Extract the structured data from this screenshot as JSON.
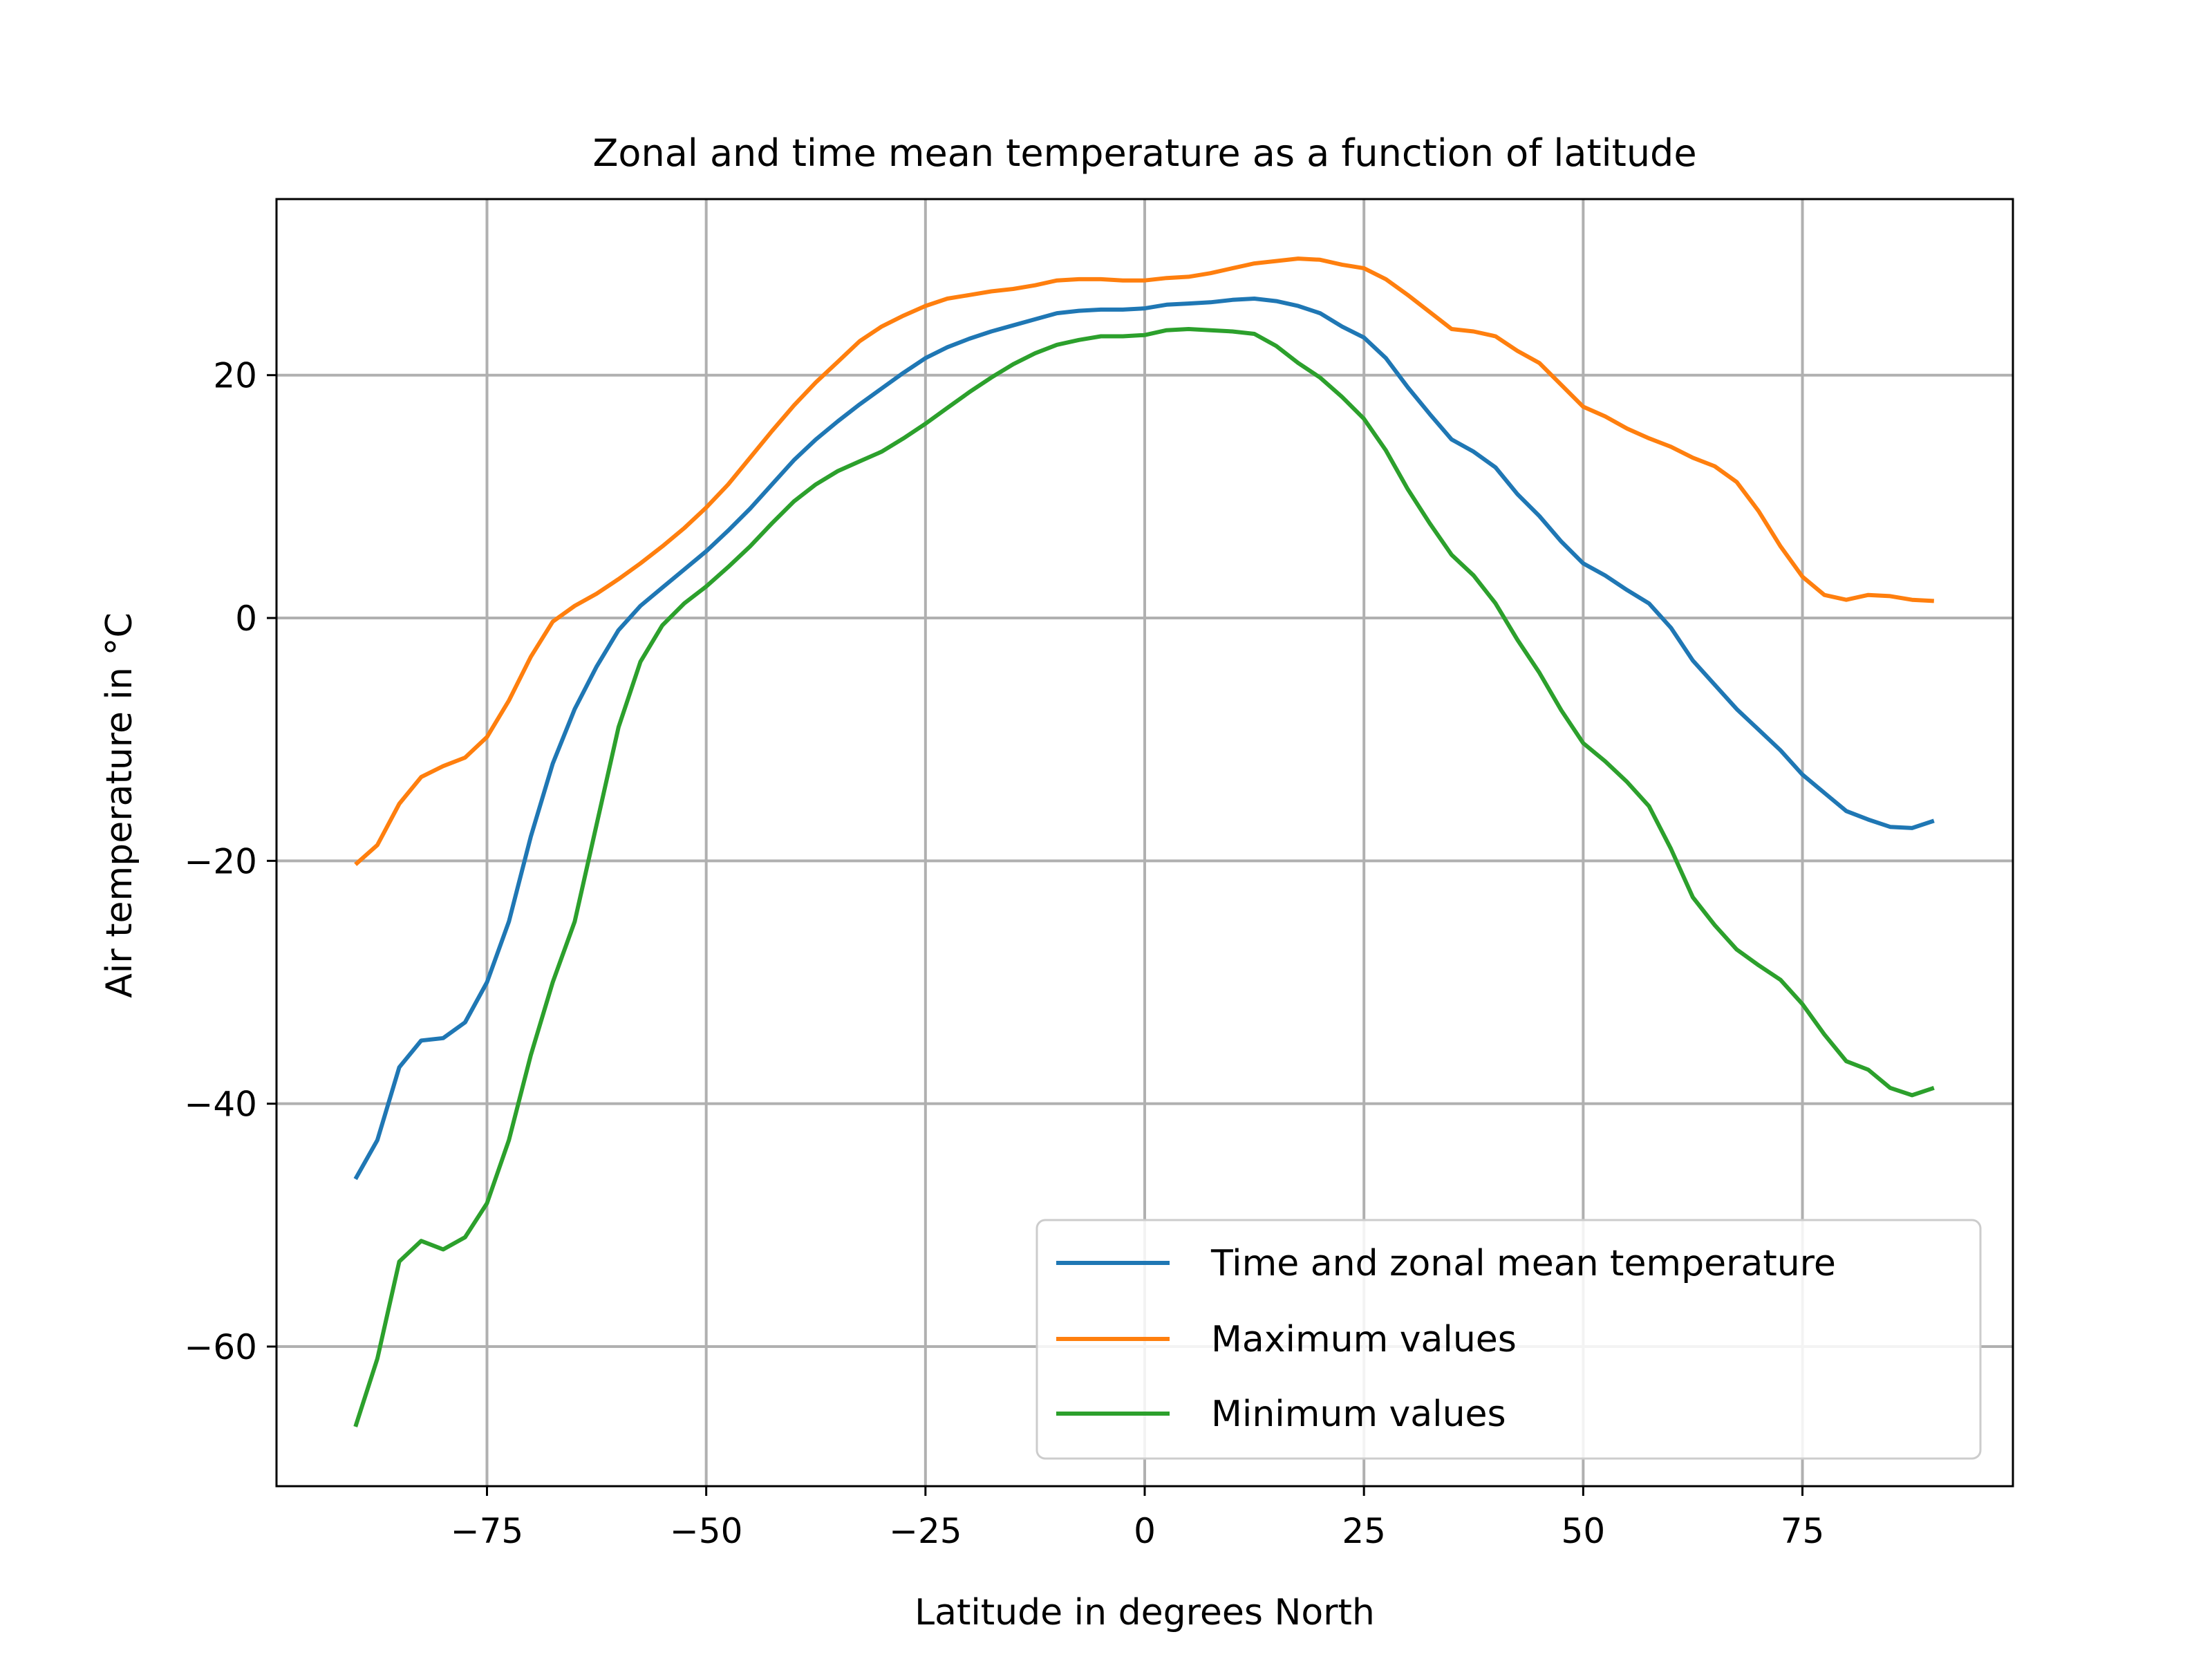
{
  "chart_data": {
    "type": "line",
    "title": "Zonal and time mean temperature as a function of latitude",
    "xlabel": "Latitude in degrees North",
    "ylabel": "Air temperature in °C",
    "xlim": [
      -99,
      99
    ],
    "ylim": [
      -71.5,
      34.5
    ],
    "xticks": [
      -75,
      -50,
      -25,
      0,
      25,
      50,
      75
    ],
    "xtick_labels": [
      "−75",
      "−50",
      "−25",
      "0",
      "25",
      "50",
      "75"
    ],
    "yticks": [
      -60,
      -40,
      -20,
      0,
      20
    ],
    "ytick_labels": [
      "−60",
      "−40",
      "−20",
      "0",
      "20"
    ],
    "grid": true,
    "legend_position": "bottom-right",
    "x": [
      -90,
      -87.5,
      -85,
      -82.5,
      -80,
      -77.5,
      -75,
      -72.5,
      -70,
      -67.5,
      -65,
      -62.5,
      -60,
      -57.5,
      -55,
      -52.5,
      -50,
      -47.5,
      -45,
      -42.5,
      -40,
      -37.5,
      -35,
      -32.5,
      -30,
      -27.5,
      -25,
      -22.5,
      -20,
      -17.5,
      -15,
      -12.5,
      -10,
      -7.5,
      -5,
      -2.5,
      0,
      2.5,
      5,
      7.5,
      10,
      12.5,
      15,
      17.5,
      20,
      22.5,
      25,
      27.5,
      30,
      32.5,
      35,
      37.5,
      40,
      42.5,
      45,
      47.5,
      50,
      52.5,
      55,
      57.5,
      60,
      62.5,
      65,
      67.5,
      70,
      72.5,
      75,
      77.5,
      80,
      82.5,
      85,
      87.5,
      90
    ],
    "series": [
      {
        "name": "Time and zonal mean temperature",
        "color": "#1f77b4",
        "values": [
          -46.2,
          -43,
          -37,
          -34.8,
          -34.6,
          -33.3,
          -30,
          -25,
          -18,
          -12,
          -7.5,
          -4,
          -1,
          1,
          2.5,
          4,
          5.5,
          7.2,
          9,
          11,
          13,
          14.7,
          16.2,
          17.6,
          18.9,
          20.2,
          21.4,
          22.3,
          23,
          23.6,
          24.1,
          24.6,
          25.1,
          25.3,
          25.4,
          25.4,
          25.5,
          25.8,
          25.9,
          26,
          26.2,
          26.3,
          26.1,
          25.7,
          25.1,
          24,
          23.1,
          21.4,
          19,
          16.8,
          14.7,
          13.7,
          12.4,
          10.2,
          8.4,
          6.3,
          4.5,
          3.5,
          2.3,
          1.2,
          -0.8,
          -3.5,
          -5.5,
          -7.5,
          -9.2,
          -10.9,
          -12.9,
          -14.4,
          -15.9,
          -16.6,
          -17.2,
          -17.3,
          -16.7
        ]
      },
      {
        "name": "Maximum values",
        "color": "#ff7f0e",
        "values": [
          -20.3,
          -18.7,
          -15.3,
          -13.1,
          -12.2,
          -11.5,
          -9.8,
          -6.8,
          -3.2,
          -0.3,
          1,
          2,
          3.2,
          4.5,
          5.9,
          7.4,
          9.1,
          11,
          13.2,
          15.4,
          17.5,
          19.4,
          21.1,
          22.8,
          24,
          24.9,
          25.7,
          26.3,
          26.6,
          26.9,
          27.1,
          27.4,
          27.8,
          27.9,
          27.9,
          27.8,
          27.8,
          28,
          28.1,
          28.4,
          28.8,
          29.2,
          29.4,
          29.6,
          29.5,
          29.1,
          28.8,
          27.9,
          26.6,
          25.2,
          23.8,
          23.6,
          23.2,
          22,
          21,
          19.2,
          17.4,
          16.6,
          15.6,
          14.8,
          14.1,
          13.2,
          12.5,
          11.2,
          8.8,
          5.9,
          3.4,
          1.9,
          1.5,
          1.9,
          1.8,
          1.5,
          1.4
        ]
      },
      {
        "name": "Minimum values",
        "color": "#2ca02c",
        "values": [
          -66.6,
          -61,
          -53,
          -51.3,
          -52,
          -51,
          -48.2,
          -43,
          -36,
          -30,
          -25,
          -17,
          -9,
          -3.6,
          -0.6,
          1.2,
          2.6,
          4.2,
          5.9,
          7.8,
          9.6,
          11,
          12.1,
          12.9,
          13.7,
          14.8,
          16,
          17.3,
          18.6,
          19.8,
          20.9,
          21.8,
          22.5,
          22.9,
          23.2,
          23.2,
          23.3,
          23.7,
          23.8,
          23.7,
          23.6,
          23.4,
          22.4,
          21,
          19.8,
          18.2,
          16.4,
          13.8,
          10.6,
          7.8,
          5.2,
          3.5,
          1.2,
          -1.8,
          -4.5,
          -7.6,
          -10.3,
          -11.8,
          -13.5,
          -15.5,
          -19,
          -23,
          -25.3,
          -27.3,
          -28.6,
          -29.8,
          -31.8,
          -34.3,
          -36.5,
          -37.2,
          -38.7,
          -39.3,
          -38.7
        ]
      }
    ]
  }
}
